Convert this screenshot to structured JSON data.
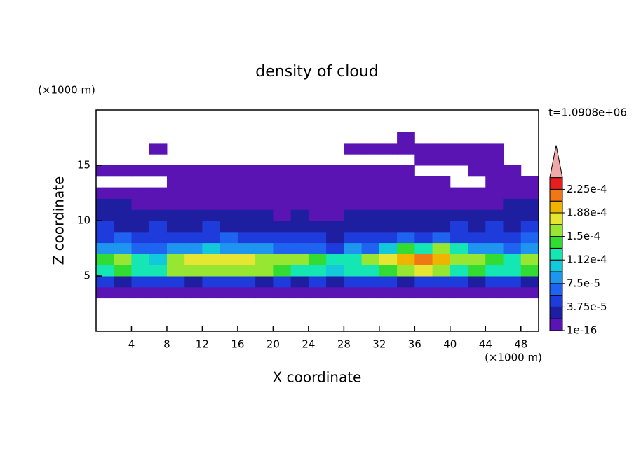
{
  "chart_data": {
    "type": "contour",
    "title": "density of cloud",
    "xlabel": "X coordinate",
    "ylabel": "Z coordinate",
    "xunit": "(×1000 m)",
    "yunit": "(×1000 m)",
    "annotation": "t=1.0908e+06",
    "xlim": [
      0,
      50
    ],
    "ylim": [
      0,
      20
    ],
    "xticks": [
      4,
      8,
      12,
      16,
      20,
      24,
      28,
      32,
      36,
      40,
      44,
      48
    ],
    "yticks": [
      5,
      10,
      15
    ],
    "x": [
      1,
      3,
      5,
      7,
      9,
      11,
      13,
      15,
      17,
      19,
      21,
      23,
      25,
      27,
      29,
      31,
      33,
      35,
      37,
      39,
      41,
      43,
      45,
      47,
      49
    ],
    "z": [
      3.5,
      4.5,
      5.5,
      6.5,
      7.5,
      8.5,
      9.5,
      10.5,
      11.5,
      12.5,
      13.5,
      14.5,
      15.5,
      16.5,
      17.5
    ],
    "values": [
      [
        1e-05,
        1e-05,
        1e-05,
        1e-05,
        1e-05,
        1e-05,
        1e-05,
        1e-05,
        1e-05,
        1e-05,
        1e-05,
        1e-05,
        1e-05,
        1e-05,
        1e-05,
        1e-05,
        1e-05,
        1e-05,
        1e-05,
        1e-05,
        1e-05,
        1e-05,
        1e-05,
        1e-05,
        1e-05
      ],
      [
        4e-05,
        3e-05,
        4e-05,
        5e-05,
        4e-05,
        3e-05,
        4e-05,
        5e-05,
        4e-05,
        3e-05,
        4e-05,
        3e-05,
        4e-05,
        3e-05,
        4e-05,
        5e-05,
        4e-05,
        3e-05,
        4e-05,
        5e-05,
        4e-05,
        3e-05,
        4e-05,
        4e-05,
        3e-05
      ],
      [
        0.00013,
        0.00014,
        0.00013,
        0.00012,
        0.00015,
        0.00016,
        0.00016,
        0.00015,
        0.00016,
        0.00015,
        0.00014,
        0.00013,
        0.00012,
        0.00011,
        0.00012,
        0.00013,
        0.00014,
        0.00016,
        0.00017,
        0.00015,
        0.00013,
        0.00014,
        0.00013,
        0.00012,
        0.00014
      ],
      [
        0.00014,
        0.00015,
        0.00013,
        0.00011,
        0.00016,
        0.00017,
        0.00018,
        0.00017,
        0.00017,
        0.00016,
        0.00016,
        0.00015,
        0.00014,
        0.00012,
        0.00013,
        0.00015,
        0.00017,
        0.00019,
        0.00021,
        0.00019,
        0.00015,
        0.00016,
        0.00014,
        0.00013,
        0.00015
      ],
      [
        8e-05,
        9e-05,
        7e-05,
        6e-05,
        8e-05,
        9e-05,
        0.0001,
        8e-05,
        9e-05,
        8e-05,
        7e-05,
        7e-05,
        6e-05,
        5e-05,
        8e-05,
        7e-05,
        0.00011,
        0.00014,
        0.00013,
        0.00015,
        0.00012,
        8e-05,
        9e-05,
        7e-05,
        8e-05
      ],
      [
        5e-05,
        6e-05,
        5e-05,
        5e-05,
        4e-05,
        5e-05,
        5e-05,
        6e-05,
        5e-05,
        4e-05,
        4e-05,
        5e-05,
        4e-05,
        3e-05,
        5e-05,
        4e-05,
        5e-05,
        6e-05,
        5e-05,
        6e-05,
        5e-05,
        5e-05,
        4e-05,
        5e-05,
        6e-05
      ],
      [
        4e-05,
        3e-05,
        3e-05,
        4e-05,
        3e-05,
        3e-05,
        4e-05,
        3e-05,
        3e-05,
        2e-05,
        3e-05,
        3e-05,
        2e-05,
        2e-05,
        3e-05,
        3e-05,
        3e-05,
        2e-05,
        3e-05,
        3e-05,
        4e-05,
        3e-05,
        4e-05,
        3e-05,
        4e-05
      ],
      [
        3e-05,
        2e-05,
        2e-05,
        3e-05,
        2e-05,
        2e-05,
        3e-05,
        2e-05,
        2e-05,
        2e-05,
        1e-05,
        2e-05,
        1e-05,
        1e-05,
        2e-05,
        2e-05,
        2e-05,
        2e-05,
        2e-05,
        3e-05,
        2e-05,
        2e-05,
        3e-05,
        2e-05,
        3e-05
      ],
      [
        2e-05,
        2e-05,
        1e-05,
        1e-05,
        1e-05,
        1e-05,
        1e-05,
        1e-05,
        1e-05,
        1e-05,
        1e-05,
        1e-05,
        1e-05,
        1e-05,
        1e-05,
        1e-05,
        1e-05,
        1e-05,
        1e-05,
        1e-05,
        1e-05,
        1e-05,
        1e-05,
        2e-05,
        2e-05
      ],
      [
        1e-05,
        1e-05,
        1e-05,
        1e-05,
        1e-05,
        1e-05,
        1e-05,
        1e-05,
        1e-05,
        1e-05,
        1e-05,
        1e-05,
        1e-05,
        1e-05,
        1e-05,
        1e-05,
        1e-05,
        1e-05,
        1e-05,
        1e-05,
        1e-05,
        1e-05,
        1e-05,
        1e-05,
        1e-05
      ],
      [
        null,
        null,
        null,
        null,
        5e-06,
        5e-06,
        5e-06,
        5e-06,
        5e-06,
        5e-06,
        5e-06,
        5e-06,
        5e-06,
        5e-06,
        5e-06,
        5e-06,
        5e-06,
        5e-06,
        5e-06,
        5e-06,
        null,
        null,
        5e-06,
        5e-06,
        5e-06
      ],
      [
        5e-06,
        5e-06,
        5e-06,
        5e-06,
        5e-06,
        5e-06,
        5e-06,
        5e-06,
        5e-06,
        5e-06,
        5e-06,
        5e-06,
        5e-06,
        5e-06,
        5e-06,
        5e-06,
        5e-06,
        5e-06,
        null,
        null,
        null,
        5e-06,
        5e-06,
        5e-06,
        null
      ],
      [
        null,
        null,
        null,
        null,
        null,
        null,
        null,
        null,
        null,
        null,
        null,
        null,
        null,
        null,
        null,
        null,
        null,
        null,
        5e-06,
        5e-06,
        5e-06,
        5e-06,
        5e-06,
        null,
        null
      ],
      [
        null,
        null,
        null,
        5e-06,
        null,
        null,
        null,
        null,
        null,
        null,
        null,
        null,
        null,
        null,
        5e-06,
        5e-06,
        5e-06,
        5e-06,
        5e-06,
        5e-06,
        5e-06,
        5e-06,
        5e-06,
        null,
        null
      ],
      [
        null,
        null,
        null,
        null,
        null,
        null,
        null,
        null,
        null,
        null,
        null,
        null,
        null,
        null,
        null,
        null,
        null,
        5e-06,
        null,
        null,
        null,
        null,
        null,
        null,
        null
      ]
    ],
    "colorbar": {
      "ticks": [
        {
          "value": 1e-16,
          "label": "1e-16"
        },
        {
          "value": 3.75e-05,
          "label": "3.75e-5"
        },
        {
          "value": 7.5e-05,
          "label": "7.5e-5"
        },
        {
          "value": 0.000112,
          "label": "1.12e-4"
        },
        {
          "value": 0.00015,
          "label": "1.5e-4"
        },
        {
          "value": 0.000188,
          "label": "1.88e-4"
        },
        {
          "value": 0.000225,
          "label": "2.25e-4"
        }
      ],
      "colors": [
        "#5a14b4",
        "#1e1ea0",
        "#1e3cdc",
        "#1e64f0",
        "#1e96f0",
        "#14c8dc",
        "#14e6b4",
        "#32dc32",
        "#96e632",
        "#e6e632",
        "#f0b400",
        "#f07814",
        "#e61e1e"
      ],
      "extend_color": "#f0a8a8"
    }
  }
}
